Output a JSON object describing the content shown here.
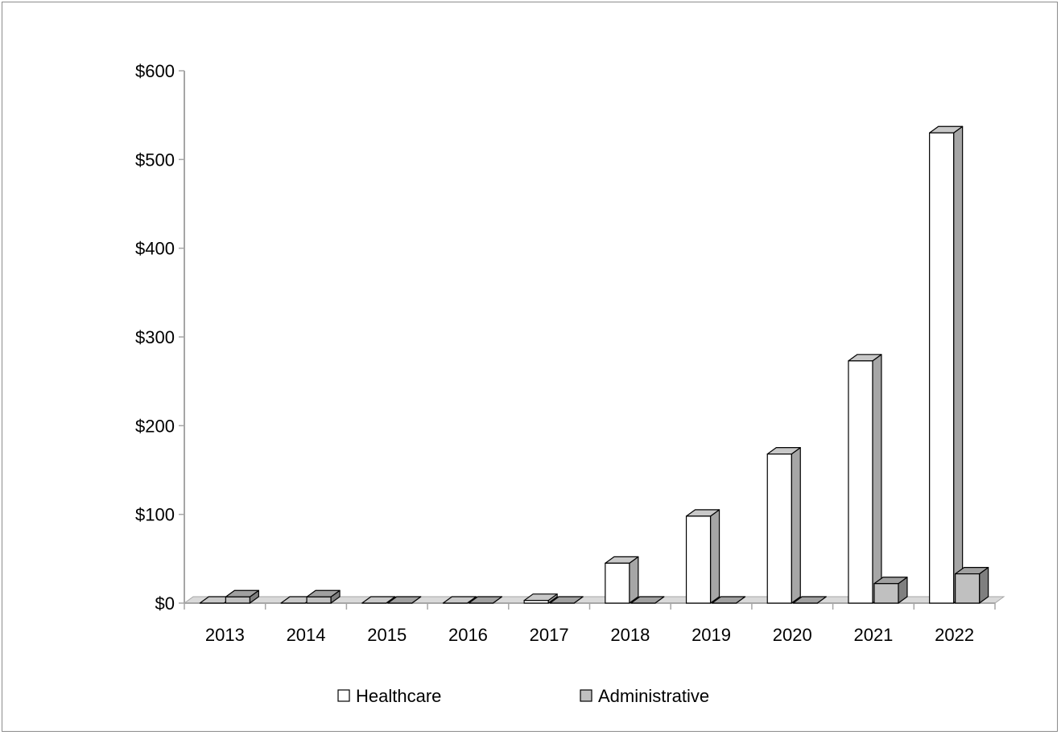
{
  "chart_data": {
    "type": "bar",
    "title": "",
    "xlabel": "",
    "ylabel": "",
    "categories": [
      "2013",
      "2014",
      "2015",
      "2016",
      "2017",
      "2018",
      "2019",
      "2020",
      "2021",
      "2022"
    ],
    "series": [
      {
        "name": "Healthcare",
        "values": [
          0,
          0,
          0,
          0,
          3,
          45,
          98,
          168,
          273,
          530
        ],
        "color": "#ffffff"
      },
      {
        "name": "Administrative",
        "values": [
          7,
          7,
          0,
          0,
          0,
          0,
          0,
          0,
          22,
          33
        ],
        "color": "#c0c0c0"
      }
    ],
    "ylim": [
      0,
      600
    ],
    "yticks": [
      0,
      100,
      200,
      300,
      400,
      500,
      600
    ],
    "ytick_labels": [
      "$0",
      "$100",
      "$200",
      "$300",
      "$400",
      "$500",
      "$600"
    ],
    "grid": false,
    "legend_position": "bottom",
    "style": "3d-clustered-column"
  }
}
